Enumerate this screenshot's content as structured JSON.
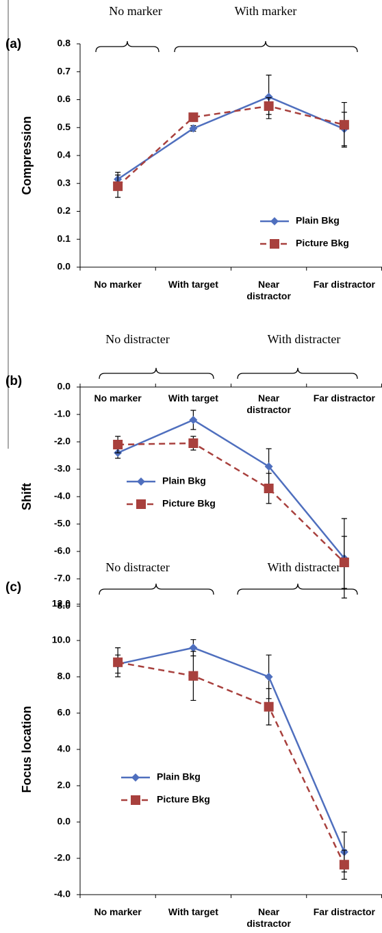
{
  "chart_data": [
    {
      "type": "line",
      "label": "(a)",
      "annotations": [
        "No marker",
        "With marker"
      ],
      "ylabel": "Compression",
      "categories": [
        "No marker",
        "With target",
        "Near distractor",
        "Far distractor"
      ],
      "series": [
        {
          "name": "Plain Bkg",
          "color": "#4f6fbe",
          "marker": "diamond",
          "line_style": "solid",
          "values": [
            0.315,
            0.497,
            0.61,
            0.495
          ],
          "errors": [
            0.025,
            0.01,
            0.078,
            0.06
          ]
        },
        {
          "name": "Picture Bkg",
          "color": "#a8403d",
          "marker": "square",
          "line_style": "dashed",
          "values": [
            0.29,
            0.537,
            0.577,
            0.51
          ],
          "errors": [
            0.04,
            0.01,
            0.03,
            0.08
          ]
        }
      ],
      "ylim": [
        0,
        0.8
      ],
      "yticks": [
        {
          "value": 0,
          "label": "0.0"
        },
        0.1,
        0.2,
        0.3,
        0.4,
        0.5,
        0.6,
        0.7,
        0.8
      ],
      "x_axis_position": "bottom",
      "legend": "lower right"
    },
    {
      "type": "line",
      "label": "(b)",
      "annotations": [
        "No distracter",
        "With distracter"
      ],
      "ylabel": "Shift",
      "categories": [
        "No marker",
        "With target",
        "Near distractor",
        "Far distractor"
      ],
      "series": [
        {
          "name": "Plain Bkg",
          "color": "#4f6fbe",
          "marker": "diamond",
          "line_style": "solid",
          "values": [
            -2.4,
            -1.2,
            -2.9,
            -6.25
          ],
          "errors": [
            0.2,
            0.35,
            0.65,
            1.45
          ]
        },
        {
          "name": "Picture Bkg",
          "color": "#a8403d",
          "marker": "square",
          "line_style": "dashed",
          "values": [
            -2.1,
            -2.05,
            -3.7,
            -6.4
          ],
          "errors": [
            0.3,
            0.25,
            0.55,
            0.95
          ]
        }
      ],
      "ylim": [
        -8,
        0
      ],
      "yticks": [
        {
          "value": 0,
          "label": "0.0"
        },
        {
          "value": -1,
          "label": "-1.0"
        },
        {
          "value": -2,
          "label": "-2.0"
        },
        {
          "value": -3,
          "label": "-3.0"
        },
        {
          "value": -4,
          "label": "-4.0"
        },
        {
          "value": -5,
          "label": "-5.0"
        },
        {
          "value": -6,
          "label": "-6.0"
        },
        {
          "value": -7,
          "label": "-7.0"
        },
        {
          "value": -8,
          "label": "-8.0"
        }
      ],
      "x_axis_position": "top",
      "legend": "center left"
    },
    {
      "type": "line",
      "label": "(c)",
      "annotations": [
        "No distracter",
        "With distracter"
      ],
      "ylabel": "Focus location",
      "categories": [
        "No marker",
        "With target",
        "Near distractor",
        "Far distractor"
      ],
      "series": [
        {
          "name": "Plain Bkg",
          "color": "#4f6fbe",
          "marker": "diamond",
          "line_style": "solid",
          "values": [
            8.7,
            9.6,
            8.0,
            -1.65
          ],
          "errors": [
            0.5,
            0.45,
            1.2,
            1.1
          ]
        },
        {
          "name": "Picture Bkg",
          "color": "#a8403d",
          "marker": "square",
          "line_style": "dashed",
          "values": [
            8.8,
            8.05,
            6.35,
            -2.35
          ],
          "errors": [
            0.8,
            1.35,
            1.0,
            0.8
          ]
        }
      ],
      "ylim": [
        -4,
        12
      ],
      "yticks": [
        {
          "value": -4,
          "label": "-4.0"
        },
        {
          "value": -2,
          "label": "-2.0"
        },
        {
          "value": 0,
          "label": "0.0"
        },
        {
          "value": 2,
          "label": "2.0"
        },
        {
          "value": 4,
          "label": "4.0"
        },
        {
          "value": 6,
          "label": "6.0"
        },
        {
          "value": 8,
          "label": "8.0"
        },
        {
          "value": 10,
          "label": "10.0"
        },
        {
          "value": 12,
          "label": "12.0"
        }
      ],
      "x_axis_position": "bottom",
      "legend": "lower left"
    }
  ]
}
